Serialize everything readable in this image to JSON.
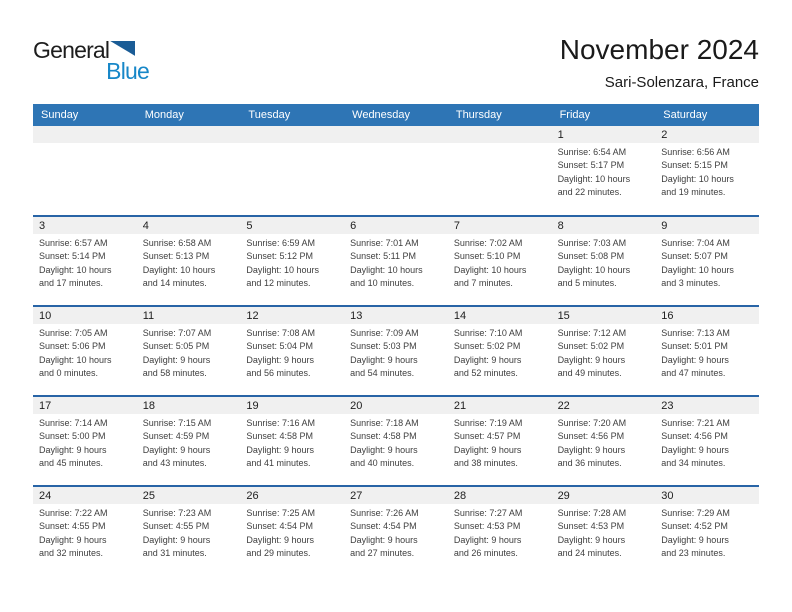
{
  "logo": {
    "line1": "General",
    "line2": "Blue"
  },
  "page_header": {
    "title": "November 2024",
    "subtitle": "Sari-Solenzara, France"
  },
  "colors": {
    "header_blue": "#2e75b5",
    "week_divider_blue": "#2864a6",
    "day_band_gray": "#f0f0f0",
    "logo_text_blue": "#1787c8",
    "logo_triangle_blue": "#1a5c96",
    "weekday_text": "#ffffff",
    "detail_text": "#3e3e3e"
  },
  "calendar": {
    "weekdays": [
      "Sunday",
      "Monday",
      "Tuesday",
      "Wednesday",
      "Thursday",
      "Friday",
      "Saturday"
    ],
    "labels": {
      "sunrise": "Sunrise:",
      "sunset": "Sunset:",
      "daylight": "Daylight:"
    },
    "weeks": [
      [
        null,
        null,
        null,
        null,
        null,
        {
          "day": "1",
          "sunrise": "6:54 AM",
          "sunset": "5:17 PM",
          "daylight_line1": "10 hours",
          "daylight_line2": "and 22 minutes."
        },
        {
          "day": "2",
          "sunrise": "6:56 AM",
          "sunset": "5:15 PM",
          "daylight_line1": "10 hours",
          "daylight_line2": "and 19 minutes."
        }
      ],
      [
        {
          "day": "3",
          "sunrise": "6:57 AM",
          "sunset": "5:14 PM",
          "daylight_line1": "10 hours",
          "daylight_line2": "and 17 minutes."
        },
        {
          "day": "4",
          "sunrise": "6:58 AM",
          "sunset": "5:13 PM",
          "daylight_line1": "10 hours",
          "daylight_line2": "and 14 minutes."
        },
        {
          "day": "5",
          "sunrise": "6:59 AM",
          "sunset": "5:12 PM",
          "daylight_line1": "10 hours",
          "daylight_line2": "and 12 minutes."
        },
        {
          "day": "6",
          "sunrise": "7:01 AM",
          "sunset": "5:11 PM",
          "daylight_line1": "10 hours",
          "daylight_line2": "and 10 minutes."
        },
        {
          "day": "7",
          "sunrise": "7:02 AM",
          "sunset": "5:10 PM",
          "daylight_line1": "10 hours",
          "daylight_line2": "and 7 minutes."
        },
        {
          "day": "8",
          "sunrise": "7:03 AM",
          "sunset": "5:08 PM",
          "daylight_line1": "10 hours",
          "daylight_line2": "and 5 minutes."
        },
        {
          "day": "9",
          "sunrise": "7:04 AM",
          "sunset": "5:07 PM",
          "daylight_line1": "10 hours",
          "daylight_line2": "and 3 minutes."
        }
      ],
      [
        {
          "day": "10",
          "sunrise": "7:05 AM",
          "sunset": "5:06 PM",
          "daylight_line1": "10 hours",
          "daylight_line2": "and 0 minutes."
        },
        {
          "day": "11",
          "sunrise": "7:07 AM",
          "sunset": "5:05 PM",
          "daylight_line1": "9 hours",
          "daylight_line2": "and 58 minutes."
        },
        {
          "day": "12",
          "sunrise": "7:08 AM",
          "sunset": "5:04 PM",
          "daylight_line1": "9 hours",
          "daylight_line2": "and 56 minutes."
        },
        {
          "day": "13",
          "sunrise": "7:09 AM",
          "sunset": "5:03 PM",
          "daylight_line1": "9 hours",
          "daylight_line2": "and 54 minutes."
        },
        {
          "day": "14",
          "sunrise": "7:10 AM",
          "sunset": "5:02 PM",
          "daylight_line1": "9 hours",
          "daylight_line2": "and 52 minutes."
        },
        {
          "day": "15",
          "sunrise": "7:12 AM",
          "sunset": "5:02 PM",
          "daylight_line1": "9 hours",
          "daylight_line2": "and 49 minutes."
        },
        {
          "day": "16",
          "sunrise": "7:13 AM",
          "sunset": "5:01 PM",
          "daylight_line1": "9 hours",
          "daylight_line2": "and 47 minutes."
        }
      ],
      [
        {
          "day": "17",
          "sunrise": "7:14 AM",
          "sunset": "5:00 PM",
          "daylight_line1": "9 hours",
          "daylight_line2": "and 45 minutes."
        },
        {
          "day": "18",
          "sunrise": "7:15 AM",
          "sunset": "4:59 PM",
          "daylight_line1": "9 hours",
          "daylight_line2": "and 43 minutes."
        },
        {
          "day": "19",
          "sunrise": "7:16 AM",
          "sunset": "4:58 PM",
          "daylight_line1": "9 hours",
          "daylight_line2": "and 41 minutes."
        },
        {
          "day": "20",
          "sunrise": "7:18 AM",
          "sunset": "4:58 PM",
          "daylight_line1": "9 hours",
          "daylight_line2": "and 40 minutes."
        },
        {
          "day": "21",
          "sunrise": "7:19 AM",
          "sunset": "4:57 PM",
          "daylight_line1": "9 hours",
          "daylight_line2": "and 38 minutes."
        },
        {
          "day": "22",
          "sunrise": "7:20 AM",
          "sunset": "4:56 PM",
          "daylight_line1": "9 hours",
          "daylight_line2": "and 36 minutes."
        },
        {
          "day": "23",
          "sunrise": "7:21 AM",
          "sunset": "4:56 PM",
          "daylight_line1": "9 hours",
          "daylight_line2": "and 34 minutes."
        }
      ],
      [
        {
          "day": "24",
          "sunrise": "7:22 AM",
          "sunset": "4:55 PM",
          "daylight_line1": "9 hours",
          "daylight_line2": "and 32 minutes."
        },
        {
          "day": "25",
          "sunrise": "7:23 AM",
          "sunset": "4:55 PM",
          "daylight_line1": "9 hours",
          "daylight_line2": "and 31 minutes."
        },
        {
          "day": "26",
          "sunrise": "7:25 AM",
          "sunset": "4:54 PM",
          "daylight_line1": "9 hours",
          "daylight_line2": "and 29 minutes."
        },
        {
          "day": "27",
          "sunrise": "7:26 AM",
          "sunset": "4:54 PM",
          "daylight_line1": "9 hours",
          "daylight_line2": "and 27 minutes."
        },
        {
          "day": "28",
          "sunrise": "7:27 AM",
          "sunset": "4:53 PM",
          "daylight_line1": "9 hours",
          "daylight_line2": "and 26 minutes."
        },
        {
          "day": "29",
          "sunrise": "7:28 AM",
          "sunset": "4:53 PM",
          "daylight_line1": "9 hours",
          "daylight_line2": "and 24 minutes."
        },
        {
          "day": "30",
          "sunrise": "7:29 AM",
          "sunset": "4:52 PM",
          "daylight_line1": "9 hours",
          "daylight_line2": "and 23 minutes."
        }
      ]
    ]
  }
}
